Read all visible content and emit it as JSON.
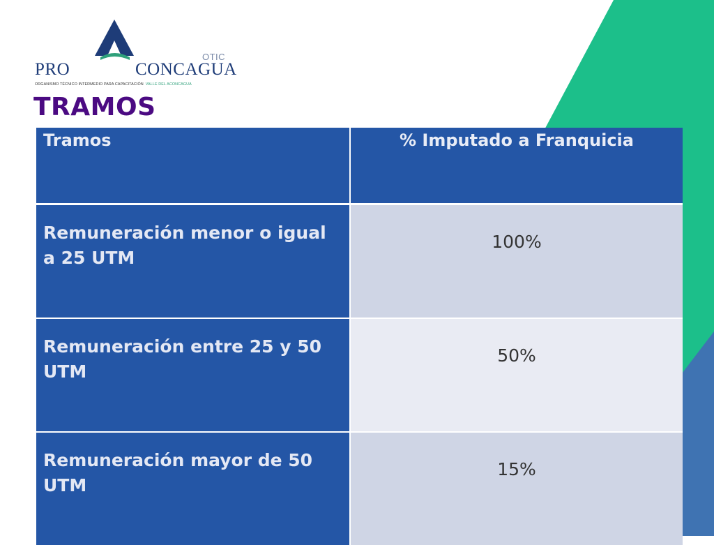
{
  "logo": {
    "left_text": "PRO",
    "right_text": "CONCAGUA",
    "tag_text": "OTIC",
    "subtitle": "ORGANISMO TÉCNICO INTERMEDIO PARA CAPACITACIÓN",
    "subtitle_accent": "VALLE DEL ACONCAGUA"
  },
  "slide": {
    "title": "TRAMOS"
  },
  "table": {
    "headers": [
      "Tramos",
      "% Imputado a Franquicia"
    ],
    "rows": [
      {
        "label": "Remuneración menor o igual a 25 UTM",
        "value": "100%"
      },
      {
        "label": "Remuneración entre 25 y 50 UTM",
        "value": "50%"
      },
      {
        "label": "Remuneración mayor de 50 UTM",
        "value": "15%"
      }
    ]
  },
  "colors": {
    "title": "#4b0a82",
    "table_blue": "#2456a6",
    "cell_light": "#cfd5e5",
    "cell_lighter": "#e9ebf3",
    "bg_green": "#1cbf8a",
    "bg_blue": "#3f73b2"
  }
}
